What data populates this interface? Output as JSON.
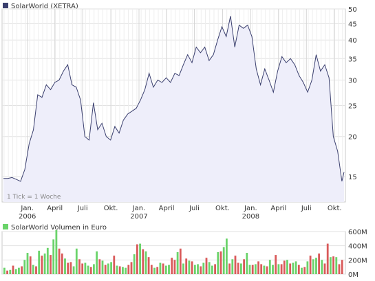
{
  "chart_data": [
    {
      "type": "area",
      "title": "SolarWorld (XETRA)",
      "note": "1 Tick = 1 Woche",
      "y_scale": "log",
      "ylim": [
        12.5,
        50
      ],
      "yticks": [
        15,
        20,
        25,
        30,
        35,
        40,
        45,
        50
      ],
      "x_labels": [
        {
          "label": "Jan.",
          "sub": "2006",
          "date": "2006-01-01"
        },
        {
          "label": "April",
          "date": "2006-04-01"
        },
        {
          "label": "Juli",
          "date": "2006-07-01"
        },
        {
          "label": "Okt.",
          "date": "2006-10-01"
        },
        {
          "label": "Jan.",
          "sub": "2007",
          "date": "2007-01-01"
        },
        {
          "label": "April",
          "date": "2007-04-01"
        },
        {
          "label": "Juli",
          "date": "2007-07-01"
        },
        {
          "label": "Okt.",
          "date": "2007-10-01"
        },
        {
          "label": "Jan.",
          "sub": "2008",
          "date": "2008-01-01"
        },
        {
          "label": "April",
          "date": "2008-04-01"
        },
        {
          "label": "Juli",
          "date": "2008-07-01"
        },
        {
          "label": "Okt.",
          "date": "2008-10-01"
        }
      ],
      "series": [
        {
          "name": "SolarWorld (XETRA)",
          "color": "#3a3f6e",
          "fill": "#eeeefa",
          "points": [
            [
              "2005-10-15",
              14.8
            ],
            [
              "2005-10-29",
              14.8
            ],
            [
              "2005-11-12",
              14.9
            ],
            [
              "2005-11-26",
              14.7
            ],
            [
              "2005-12-10",
              14.5
            ],
            [
              "2005-12-24",
              15.8
            ],
            [
              "2006-01-07",
              19.0
            ],
            [
              "2006-01-21",
              21.0
            ],
            [
              "2006-02-04",
              27.0
            ],
            [
              "2006-02-18",
              26.5
            ],
            [
              "2006-03-04",
              29.0
            ],
            [
              "2006-03-18",
              28.0
            ],
            [
              "2006-04-01",
              29.5
            ],
            [
              "2006-04-15",
              30.0
            ],
            [
              "2006-04-29",
              32.0
            ],
            [
              "2006-05-13",
              33.5
            ],
            [
              "2006-05-27",
              29.0
            ],
            [
              "2006-06-10",
              28.5
            ],
            [
              "2006-06-24",
              26.0
            ],
            [
              "2006-07-08",
              20.0
            ],
            [
              "2006-07-22",
              19.5
            ],
            [
              "2006-08-05",
              25.5
            ],
            [
              "2006-08-19",
              21.0
            ],
            [
              "2006-09-02",
              22.0
            ],
            [
              "2006-09-16",
              20.0
            ],
            [
              "2006-09-30",
              19.5
            ],
            [
              "2006-10-14",
              21.5
            ],
            [
              "2006-10-28",
              20.5
            ],
            [
              "2006-11-11",
              22.5
            ],
            [
              "2006-11-25",
              23.5
            ],
            [
              "2006-12-09",
              24.0
            ],
            [
              "2006-12-23",
              24.5
            ],
            [
              "2007-01-06",
              26.0
            ],
            [
              "2007-01-20",
              28.0
            ],
            [
              "2007-02-03",
              31.5
            ],
            [
              "2007-02-17",
              28.5
            ],
            [
              "2007-03-03",
              30.0
            ],
            [
              "2007-03-17",
              29.5
            ],
            [
              "2007-03-31",
              30.5
            ],
            [
              "2007-04-14",
              29.5
            ],
            [
              "2007-04-28",
              31.5
            ],
            [
              "2007-05-12",
              31.0
            ],
            [
              "2007-05-26",
              33.5
            ],
            [
              "2007-06-09",
              36.0
            ],
            [
              "2007-06-23",
              34.0
            ],
            [
              "2007-07-07",
              38.0
            ],
            [
              "2007-07-21",
              36.5
            ],
            [
              "2007-08-04",
              38.0
            ],
            [
              "2007-08-18",
              34.5
            ],
            [
              "2007-09-01",
              36.0
            ],
            [
              "2007-09-15",
              40.0
            ],
            [
              "2007-09-29",
              44.0
            ],
            [
              "2007-10-13",
              41.0
            ],
            [
              "2007-10-27",
              47.5
            ],
            [
              "2007-11-10",
              38.0
            ],
            [
              "2007-11-24",
              44.5
            ],
            [
              "2007-12-08",
              43.5
            ],
            [
              "2007-12-22",
              44.5
            ],
            [
              "2008-01-05",
              41.0
            ],
            [
              "2008-01-19",
              32.5
            ],
            [
              "2008-02-02",
              29.0
            ],
            [
              "2008-02-16",
              32.5
            ],
            [
              "2008-03-01",
              30.0
            ],
            [
              "2008-03-15",
              27.5
            ],
            [
              "2008-03-29",
              32.0
            ],
            [
              "2008-04-12",
              35.5
            ],
            [
              "2008-04-26",
              34.0
            ],
            [
              "2008-05-10",
              35.0
            ],
            [
              "2008-05-24",
              33.5
            ],
            [
              "2008-06-07",
              31.0
            ],
            [
              "2008-06-21",
              29.5
            ],
            [
              "2008-07-05",
              27.5
            ],
            [
              "2008-07-19",
              30.0
            ],
            [
              "2008-08-02",
              36.0
            ],
            [
              "2008-08-16",
              32.0
            ],
            [
              "2008-08-30",
              33.5
            ],
            [
              "2008-09-13",
              30.5
            ],
            [
              "2008-09-27",
              20.0
            ],
            [
              "2008-10-11",
              18.0
            ],
            [
              "2008-10-25",
              14.5
            ],
            [
              "2008-11-01",
              15.5
            ]
          ]
        }
      ]
    },
    {
      "type": "bar",
      "title": "SolarWorld Volumen in Euro",
      "ylim": [
        0,
        600000000
      ],
      "yticks": [
        0,
        200000000,
        400000000,
        600000000
      ],
      "ytick_labels": [
        "0M",
        "200M",
        "400M",
        "600M"
      ],
      "up_color": "#6ad36a",
      "down_color": "#d95a5a",
      "values": [
        90,
        50,
        60,
        120,
        70,
        90,
        110,
        200,
        300,
        250,
        130,
        110,
        330,
        260,
        290,
        370,
        270,
        490,
        620,
        360,
        290,
        220,
        160,
        170,
        110,
        360,
        210,
        150,
        160,
        120,
        100,
        140,
        320,
        210,
        190,
        130,
        150,
        170,
        260,
        120,
        110,
        100,
        90,
        130,
        170,
        280,
        420,
        430,
        350,
        320,
        240,
        130,
        90,
        100,
        160,
        150,
        120,
        130,
        230,
        200,
        310,
        360,
        150,
        220,
        190,
        180,
        130,
        140,
        110,
        160,
        230,
        170,
        120,
        140,
        310,
        320,
        380,
        500,
        150,
        210,
        260,
        160,
        150,
        210,
        300,
        130,
        130,
        140,
        180,
        140,
        120,
        110,
        200,
        130,
        270,
        140,
        140,
        190,
        200,
        150,
        160,
        180,
        130,
        90,
        100,
        180,
        260,
        210,
        230,
        290,
        200,
        150,
        430,
        240,
        250,
        240,
        140,
        200
      ],
      "directions": [
        "u",
        "d",
        "u",
        "d",
        "u",
        "u",
        "d",
        "u",
        "u",
        "d",
        "u",
        "d",
        "u",
        "d",
        "u",
        "u",
        "d",
        "u",
        "u",
        "d",
        "d",
        "u",
        "d",
        "d",
        "u",
        "u",
        "d",
        "d",
        "u",
        "u",
        "d",
        "u",
        "u",
        "d",
        "u",
        "d",
        "u",
        "u",
        "d",
        "u",
        "d",
        "u",
        "u",
        "d",
        "d",
        "u",
        "d",
        "u",
        "d",
        "u",
        "d",
        "d",
        "u",
        "d",
        "u",
        "d",
        "u",
        "u",
        "d",
        "d",
        "u",
        "d",
        "u",
        "d",
        "u",
        "d",
        "u",
        "u",
        "d",
        "u",
        "d",
        "u",
        "u",
        "d",
        "u",
        "d",
        "u",
        "u",
        "d",
        "u",
        "d",
        "d",
        "u",
        "d",
        "u",
        "u",
        "d",
        "u",
        "d",
        "d",
        "u",
        "d",
        "u",
        "u",
        "d",
        "u",
        "d",
        "d",
        "u",
        "d",
        "u",
        "u",
        "d",
        "u",
        "d",
        "u",
        "d",
        "u",
        "u",
        "d",
        "u",
        "d",
        "d",
        "u",
        "d",
        "u",
        "d",
        "d"
      ]
    }
  ]
}
